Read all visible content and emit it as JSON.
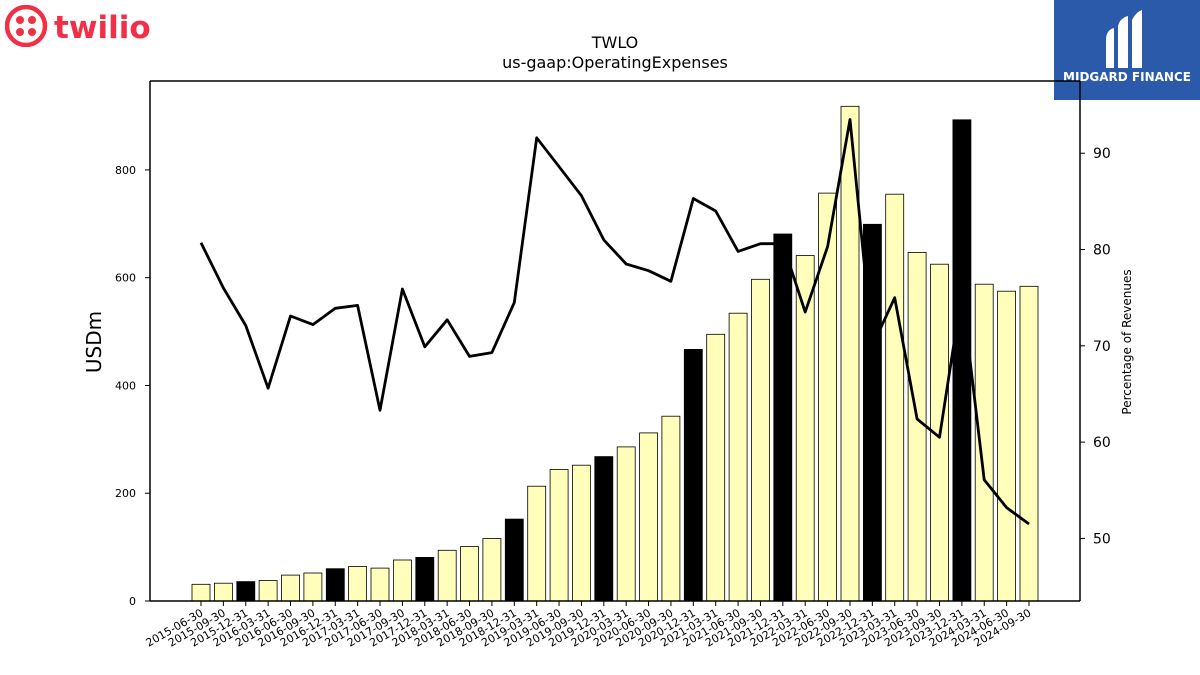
{
  "brand": {
    "left_logo_text": "twilio",
    "right_logo_text": "MIDGARD FINANCE",
    "twilio_color": "#f22f46",
    "midgard_bg": "#2b5aab"
  },
  "chart_data": {
    "type": "bar",
    "title": "TWLO",
    "subtitle": "us-gaap:OperatingExpenses",
    "ylabel": "USDm",
    "y2label": "Percentage of Revenues",
    "ylim": [
      0,
      965
    ],
    "y2lim": [
      43.5,
      97.5
    ],
    "yticks": [
      0,
      200,
      400,
      600,
      800
    ],
    "y2ticks": [
      50,
      60,
      70,
      80,
      90
    ],
    "bar_color": "#ffffbb",
    "highlight_color": "#000000",
    "line_color": "#000000",
    "categories": [
      "2015-06-30",
      "2015-09-30",
      "2015-12-31",
      "2016-03-31",
      "2016-06-30",
      "2016-09-30",
      "2016-12-31",
      "2017-03-31",
      "2017-06-30",
      "2017-09-30",
      "2017-12-31",
      "2018-03-31",
      "2018-06-30",
      "2018-09-30",
      "2018-12-31",
      "2019-03-31",
      "2019-06-30",
      "2019-09-30",
      "2019-12-31",
      "2020-03-31",
      "2020-06-30",
      "2020-09-30",
      "2020-12-31",
      "2021-03-31",
      "2021-06-30",
      "2021-09-30",
      "2021-12-31",
      "2022-03-31",
      "2022-06-30",
      "2022-09-30",
      "2022-12-31",
      "2023-03-31",
      "2023-06-30",
      "2023-09-30",
      "2023-12-31",
      "2024-03-31",
      "2024-06-30",
      "2024-09-30"
    ],
    "highlighted": [
      false,
      false,
      true,
      false,
      false,
      false,
      true,
      false,
      false,
      false,
      true,
      false,
      false,
      false,
      true,
      false,
      false,
      false,
      true,
      false,
      false,
      false,
      true,
      false,
      false,
      false,
      true,
      false,
      false,
      false,
      true,
      false,
      false,
      false,
      true,
      false,
      false,
      false
    ],
    "series": [
      {
        "name": "USDm",
        "type": "bar",
        "values": [
          31,
          33,
          36,
          38,
          48,
          52,
          60,
          64,
          61,
          76,
          81,
          94,
          101,
          116,
          152,
          213,
          244,
          252,
          268,
          286,
          312,
          343,
          467,
          495,
          534,
          597,
          681,
          641,
          757,
          918,
          699,
          755,
          647,
          625,
          893,
          588,
          575,
          584
        ]
      },
      {
        "name": "Percentage of Revenues",
        "type": "line",
        "axis": "right",
        "values": [
          80.7,
          76.0,
          72.1,
          65.6,
          73.1,
          72.2,
          73.9,
          74.2,
          63.3,
          75.9,
          69.9,
          72.7,
          68.9,
          69.3,
          74.5,
          91.6,
          88.6,
          85.6,
          81.0,
          78.5,
          77.8,
          76.7,
          85.3,
          84.0,
          79.8,
          80.6,
          80.6,
          73.5,
          80.3,
          93.5,
          70.0,
          75.0,
          62.4,
          60.5,
          75.6,
          56.1,
          53.2,
          51.5
        ]
      }
    ]
  }
}
